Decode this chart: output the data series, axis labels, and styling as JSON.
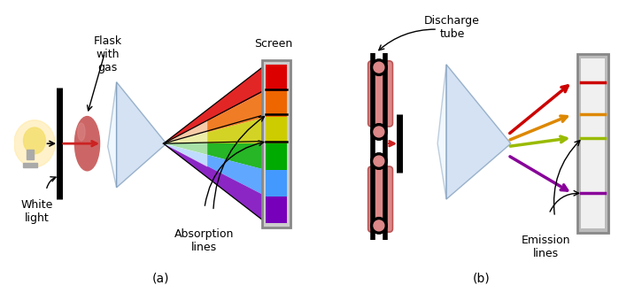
{
  "bg_color": "#ffffff",
  "label_a": "(a)",
  "label_b": "(b)",
  "text_flask": "Flask\nwith\ngas",
  "text_white_light": "White\nlight",
  "text_screen_a": "Screen",
  "text_absorption": "Absorption\nlines",
  "text_discharge": "Discharge\ntube",
  "text_emission": "Emission\nlines",
  "font_size": 9,
  "prism_color": "#b8d0ee",
  "prism_alpha": 0.55,
  "rainbow_colors_screen": [
    "#dd0000",
    "#ee6600",
    "#dddd00",
    "#00bb00",
    "#4488ff",
    "#8800cc"
  ],
  "emission_colors": [
    "#cc0000",
    "#dd8800",
    "#99bb00",
    "#880099"
  ],
  "screen_gray": "#d8d8d8",
  "screen_border": "#888888"
}
